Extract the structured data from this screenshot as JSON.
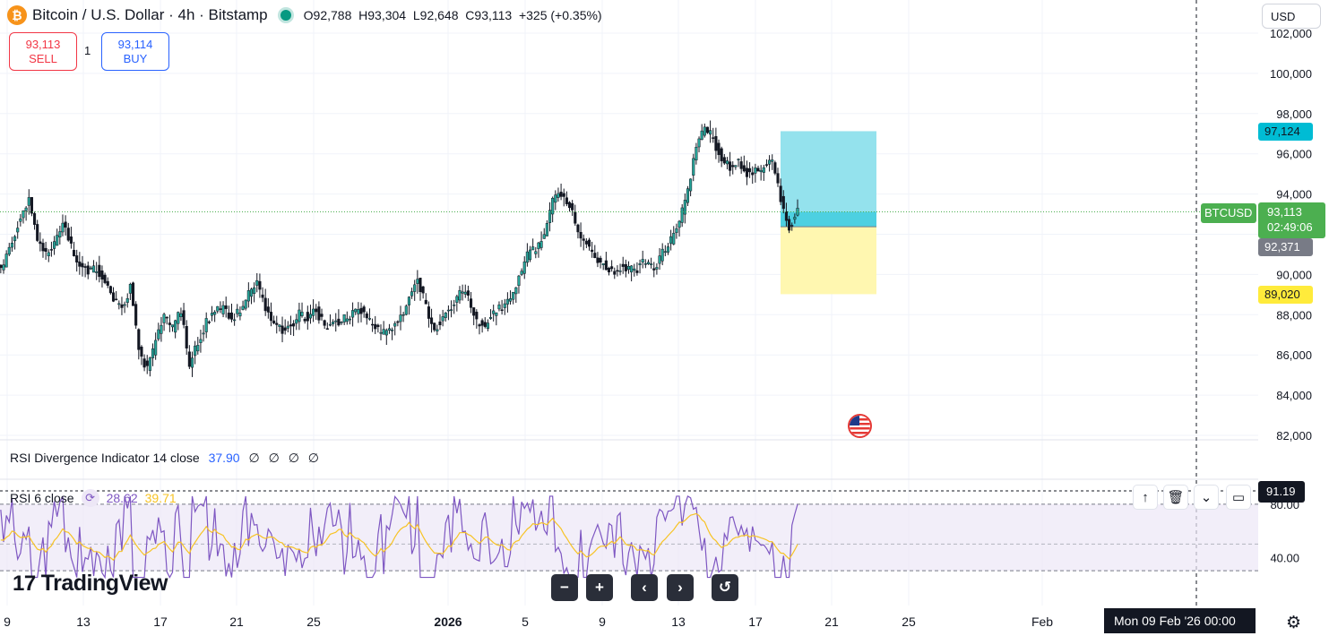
{
  "header": {
    "coin_icon_glyph": "₿",
    "title": "Bitcoin / U.S. Dollar · 4h · Bitstamp",
    "ohlc": {
      "o_label": "O",
      "o_value": "92,788",
      "h_label": "H",
      "h_value": "93,304",
      "l_label": "L",
      "l_value": "92,648",
      "c_label": "C",
      "c_value": "93,113",
      "change": "+325 (+0.35%)"
    }
  },
  "trade": {
    "sell_price": "93,113",
    "sell_label": "SELL",
    "quantity": "1",
    "buy_price": "93,114",
    "buy_label": "BUY"
  },
  "currency": "USD",
  "price_axis": [
    "102,000",
    "100,000",
    "98,000",
    "96,000",
    "94,000",
    "92,000",
    "90,000",
    "88,000",
    "86,000",
    "84,000",
    "82,000"
  ],
  "price_labels": {
    "target": "97,124",
    "entry": "92,371",
    "stop": "89,020",
    "symbol_tag": "BTCUSD",
    "last_price": "93,113",
    "countdown": "02:49:06"
  },
  "rsi_divergence": {
    "title": "RSI Divergence Indicator 14 close",
    "value": "37.90",
    "extra_values": [
      "∅",
      "∅",
      "∅",
      "∅"
    ]
  },
  "rsi6": {
    "title": "RSI 6 close",
    "value1": "28.62",
    "value2": "39.71",
    "axis": [
      "80.00",
      "40.00"
    ],
    "last_box": "91.19"
  },
  "logo": {
    "mark": "17",
    "text": "TradingView"
  },
  "nav_buttons": [
    "−",
    "+",
    "‹",
    "›",
    "↺"
  ],
  "time_axis": [
    "9",
    "13",
    "17",
    "21",
    "25",
    "2026",
    "5",
    "9",
    "13",
    "17",
    "21",
    "25",
    "Feb"
  ],
  "crosshair_date": "Mon 09 Feb '26   00:00",
  "colors": {
    "up": "#26a69a",
    "down": "#131722",
    "target_zone": "#8ee0ec",
    "stop_zone": "#fff7b0",
    "last_price": "#4caf50",
    "rsi_line": "#7e57c2",
    "rsi_ma": "#f7c325"
  },
  "chart_data": {
    "type": "candlestick",
    "ylim": [
      82000,
      103000
    ],
    "series_close_approx": [
      90500,
      91800,
      92800,
      93700,
      91600,
      90900,
      91600,
      92600,
      91400,
      90500,
      90200,
      90300,
      89800,
      88600,
      88300,
      89400,
      86200,
      85300,
      86600,
      87900,
      87300,
      88200,
      85400,
      86600,
      87700,
      88100,
      88300,
      87800,
      88200,
      89000,
      89500,
      88400,
      87600,
      87300,
      87500,
      88000,
      87900,
      88200,
      87400,
      87600,
      87700,
      87900,
      88400,
      87900,
      87300,
      87100,
      87300,
      87900,
      88800,
      89900,
      88300,
      87300,
      87900,
      88300,
      89200,
      88900,
      87600,
      87500,
      88100,
      88400,
      88900,
      89900,
      90900,
      91300,
      91900,
      93600,
      94100,
      93500,
      92100,
      91600,
      90800,
      90600,
      90100,
      90400,
      90200,
      90300,
      90700,
      90200,
      91100,
      91700,
      92600,
      94200,
      96400,
      97400,
      96700,
      95800,
      95400,
      95600,
      95100,
      95200,
      95300,
      95600,
      93700,
      92300,
      93113
    ],
    "position": {
      "entry": 92371,
      "target": 97124,
      "stop": 89020
    }
  }
}
